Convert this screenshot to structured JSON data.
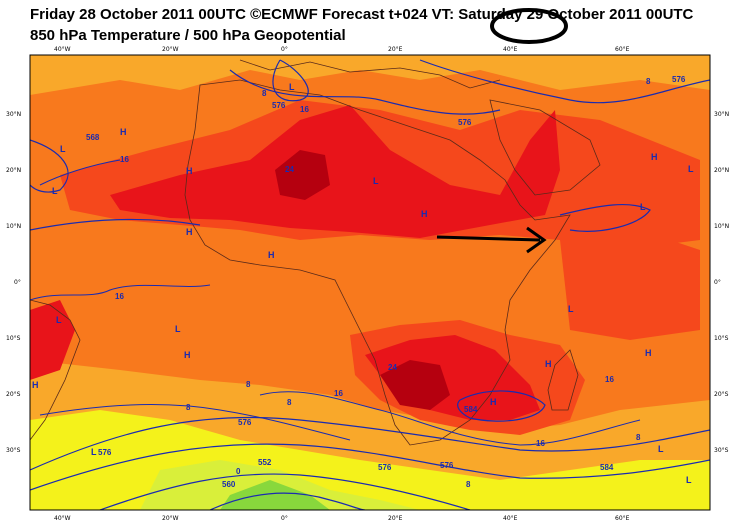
{
  "header": {
    "line1": "Friday 28 October 2011 00UTC ©ECMWF Forecast t+024 VT: Saturday 29 October 2011 00UTC",
    "line2": "850 hPa Temperature / 500 hPa Geopotential"
  },
  "axes": {
    "lon_ticks": [
      "40°W",
      "20°W",
      "0°",
      "20°E",
      "40°E",
      "60°E"
    ],
    "lat_ticks": [
      "30°N",
      "20°N",
      "10°N",
      "0°",
      "10°S",
      "20°S",
      "30°S"
    ]
  },
  "contour_labels": {
    "temperature": [
      "16",
      "24",
      "16",
      "16",
      "24",
      "16",
      "16",
      "8",
      "8",
      "8",
      "8",
      "0",
      "8",
      "16",
      "8",
      "8"
    ],
    "geopotential": [
      "576",
      "576",
      "576",
      "568",
      "576",
      "552",
      "560",
      "584",
      "576",
      "584",
      "576",
      "576"
    ]
  },
  "pressure_centers": [
    "L",
    "H",
    "L",
    "H",
    "L",
    "L",
    "H",
    "H",
    "H",
    "L",
    "H",
    "L",
    "L",
    "H",
    "L",
    "L",
    "H",
    "H",
    "L",
    "H",
    "H",
    "L",
    "L"
  ],
  "annotations": {
    "circle": "circle around the day '29' in the valid-time header",
    "arrow": "black arrow pointing east over the Horn of Africa"
  },
  "colors": {
    "warm_dark": "#b5000f",
    "red": "#e8141a",
    "orange_red": "#f5481c",
    "orange": "#f8791d",
    "light_orange": "#f9a82a",
    "yellow": "#f4f21b",
    "yellow_green": "#d9ef3a",
    "green": "#88d83c",
    "contour": "#1b2bb0"
  }
}
